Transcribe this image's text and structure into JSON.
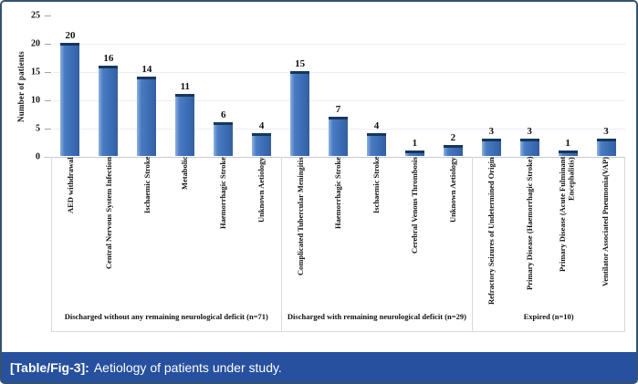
{
  "figure": {
    "caption_label": "[Table/Fig-3]:",
    "caption_text": "Aetiology of patients under study.",
    "caption_bg": "#27509e",
    "frame_color": "#35536f"
  },
  "chart_data": {
    "type": "bar",
    "title": "",
    "xlabel": "",
    "ylabel": "Number of patients",
    "ylim": [
      0,
      25
    ],
    "yticks": [
      0,
      5,
      10,
      15,
      20,
      25
    ],
    "gridlines": [
      5,
      10,
      15,
      20
    ],
    "legend": "none",
    "bar_color": "#3a6cb5",
    "bar_cap_color": "#16365c",
    "groups": [
      {
        "label": "Discharged without any remaining neurological deficit (n=71)",
        "categories": [
          "AED withdrawal",
          "Central Nervous System Infection",
          "Ischaemic Stroke",
          "Metabolic",
          "Haemorrhagic Stroke",
          "Unknown Aetiology"
        ],
        "values": [
          20,
          16,
          14,
          11,
          6,
          4
        ]
      },
      {
        "label": "Discharged with remaining neurological deficit (n=29)",
        "categories": [
          "Complicated Tubercular Meningitis",
          "Haemorrhagic Stroke",
          "Ischaemic Stroke",
          "Cerebral Venous Thrombosis",
          "Unknown Aetiology"
        ],
        "values": [
          15,
          7,
          4,
          1,
          2
        ]
      },
      {
        "label": "Expired (n=10)",
        "categories": [
          "Refractory Seizures of Undetermined Origin",
          "Primary Disease (Haemorrhagic Stroke)",
          "Primary Disease (Acute Fulminant Encephalitis)",
          "Ventilator Associated Pneumonia(VAP)"
        ],
        "values": [
          3,
          3,
          1,
          3
        ]
      }
    ]
  }
}
